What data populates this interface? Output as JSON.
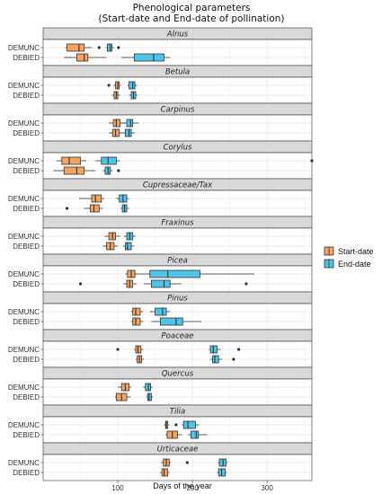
{
  "chart_data": {
    "type": "boxplot",
    "title": [
      "Phenological parameters",
      "(Start-date and End-date of pollination)"
    ],
    "xlabel": "Days of the year",
    "xlim": [
      0,
      360
    ],
    "xticks": [
      100,
      200,
      300
    ],
    "stations": [
      "DEMUNC",
      "DEBIED"
    ],
    "legend": {
      "position": "right",
      "entries": [
        {
          "name": "Start-date",
          "color": "#F4A460"
        },
        {
          "name": "End-date",
          "color": "#4FC3E8"
        }
      ]
    },
    "colors": {
      "start": "#F4A460",
      "end": "#4FC3E8",
      "strip": "#D9D9D9",
      "grid": "#EBEBEB"
    },
    "panels": [
      {
        "taxon": "Alnus",
        "rows": [
          {
            "station": "DEMUNC",
            "start": {
              "whislo": 30,
              "q1": 32,
              "med": 48,
              "q3": 55,
              "whishi": 65,
              "out": [
                75
              ]
            },
            "end": {
              "whislo": 84,
              "q1": 86,
              "med": 90,
              "q3": 92,
              "whishi": 95,
              "out": [
                101
              ]
            }
          },
          {
            "station": "DEBIED",
            "start": {
              "whislo": 28,
              "q1": 45,
              "med": 55,
              "q3": 60,
              "whishi": 85,
              "out": []
            },
            "end": {
              "whislo": 105,
              "q1": 122,
              "med": 148,
              "q3": 162,
              "whishi": 170,
              "out": []
            }
          }
        ]
      },
      {
        "taxon": "Betula",
        "rows": [
          {
            "station": "DEMUNC",
            "start": {
              "whislo": 94,
              "q1": 97,
              "med": 100,
              "q3": 102,
              "whishi": 104,
              "out": [
                88
              ]
            },
            "end": {
              "whislo": 113,
              "q1": 115,
              "med": 120,
              "q3": 123,
              "whishi": 126,
              "out": []
            }
          },
          {
            "station": "DEBIED",
            "start": {
              "whislo": 92,
              "q1": 95,
              "med": 98,
              "q3": 100,
              "whishi": 103,
              "out": []
            },
            "end": {
              "whislo": 115,
              "q1": 118,
              "med": 121,
              "q3": 124,
              "whishi": 126,
              "out": []
            }
          }
        ]
      },
      {
        "taxon": "Carpinus",
        "rows": [
          {
            "station": "DEMUNC",
            "start": {
              "whislo": 88,
              "q1": 94,
              "med": 98,
              "q3": 103,
              "whishi": 110,
              "out": []
            },
            "end": {
              "whislo": 105,
              "q1": 112,
              "med": 117,
              "q3": 120,
              "whishi": 128,
              "out": []
            }
          },
          {
            "station": "DEBIED",
            "start": {
              "whislo": 88,
              "q1": 93,
              "med": 97,
              "q3": 102,
              "whishi": 108,
              "out": []
            },
            "end": {
              "whislo": 105,
              "q1": 110,
              "med": 115,
              "q3": 118,
              "whishi": 123,
              "out": []
            }
          }
        ]
      },
      {
        "taxon": "Corylus",
        "rows": [
          {
            "station": "DEMUNC",
            "start": {
              "whislo": 18,
              "q1": 25,
              "med": 35,
              "q3": 50,
              "whishi": 58,
              "out": []
            },
            "end": {
              "whislo": 70,
              "q1": 78,
              "med": 87,
              "q3": 98,
              "whishi": 103,
              "out": [
                360
              ]
            }
          },
          {
            "station": "DEBIED",
            "start": {
              "whislo": 14,
              "q1": 28,
              "med": 45,
              "q3": 55,
              "whishi": 70,
              "out": []
            },
            "end": {
              "whislo": 80,
              "q1": 83,
              "med": 87,
              "q3": 90,
              "whishi": 93,
              "out": [
                101
              ]
            }
          }
        ]
      },
      {
        "taxon": "Cupressaceae/Tax",
        "rows": [
          {
            "station": "DEMUNC",
            "start": {
              "whislo": 48,
              "q1": 65,
              "med": 70,
              "q3": 78,
              "whishi": 82,
              "out": []
            },
            "end": {
              "whislo": 98,
              "q1": 102,
              "med": 107,
              "q3": 112,
              "whishi": 115,
              "out": []
            }
          },
          {
            "station": "DEBIED",
            "start": {
              "whislo": 55,
              "q1": 63,
              "med": 68,
              "q3": 75,
              "whishi": 80,
              "out": [
                32
              ]
            },
            "end": {
              "whislo": 104,
              "q1": 106,
              "med": 109,
              "q3": 112,
              "whishi": 115,
              "out": []
            }
          }
        ]
      },
      {
        "taxon": "Fraxinus",
        "rows": [
          {
            "station": "DEMUNC",
            "start": {
              "whislo": 82,
              "q1": 88,
              "med": 93,
              "q3": 97,
              "whishi": 103,
              "out": []
            },
            "end": {
              "whislo": 108,
              "q1": 112,
              "med": 116,
              "q3": 120,
              "whishi": 124,
              "out": []
            }
          },
          {
            "station": "DEBIED",
            "start": {
              "whislo": 80,
              "q1": 85,
              "med": 90,
              "q3": 95,
              "whishi": 100,
              "out": []
            },
            "end": {
              "whislo": 107,
              "q1": 110,
              "med": 113,
              "q3": 118,
              "whishi": 122,
              "out": []
            }
          }
        ]
      },
      {
        "taxon": "Picea",
        "rows": [
          {
            "station": "DEMUNC",
            "start": {
              "whislo": 110,
              "q1": 113,
              "med": 118,
              "q3": 123,
              "whishi": 128,
              "out": []
            },
            "end": {
              "whislo": 128,
              "q1": 143,
              "med": 167,
              "q3": 210,
              "whishi": 283,
              "out": []
            }
          },
          {
            "station": "DEBIED",
            "start": {
              "whislo": 108,
              "q1": 112,
              "med": 116,
              "q3": 120,
              "whishi": 125,
              "out": [
                50
              ]
            },
            "end": {
              "whislo": 135,
              "q1": 145,
              "med": 162,
              "q3": 170,
              "whishi": 185,
              "out": [
                272
              ]
            }
          }
        ]
      },
      {
        "taxon": "Pinus",
        "rows": [
          {
            "station": "DEMUNC",
            "start": {
              "whislo": 118,
              "q1": 120,
              "med": 124,
              "q3": 130,
              "whishi": 134,
              "out": []
            },
            "end": {
              "whislo": 143,
              "q1": 150,
              "med": 160,
              "q3": 165,
              "whishi": 170,
              "out": []
            }
          },
          {
            "station": "DEBIED",
            "start": {
              "whislo": 118,
              "q1": 120,
              "med": 124,
              "q3": 130,
              "whishi": 134,
              "out": []
            },
            "end": {
              "whislo": 145,
              "q1": 157,
              "med": 178,
              "q3": 187,
              "whishi": 212,
              "out": []
            }
          }
        ]
      },
      {
        "taxon": "Poaceae",
        "rows": [
          {
            "station": "DEMUNC",
            "start": {
              "whislo": 122,
              "q1": 124,
              "med": 127,
              "q3": 131,
              "whishi": 134,
              "out": [
                100
              ]
            },
            "end": {
              "whislo": 222,
              "q1": 224,
              "med": 228,
              "q3": 233,
              "whishi": 238,
              "out": [
                262
              ]
            }
          },
          {
            "station": "DEBIED",
            "start": {
              "whislo": 124,
              "q1": 126,
              "med": 129,
              "q3": 132,
              "whishi": 135,
              "out": []
            },
            "end": {
              "whislo": 224,
              "q1": 227,
              "med": 230,
              "q3": 235,
              "whishi": 240,
              "out": [
                255
              ]
            }
          }
        ]
      },
      {
        "taxon": "Quercus",
        "rows": [
          {
            "station": "DEMUNC",
            "start": {
              "whislo": 100,
              "q1": 105,
              "med": 110,
              "q3": 115,
              "whishi": 118,
              "out": []
            },
            "end": {
              "whislo": 134,
              "q1": 137,
              "med": 141,
              "q3": 144,
              "whishi": 147,
              "out": []
            }
          },
          {
            "station": "DEBIED",
            "start": {
              "whislo": 96,
              "q1": 98,
              "med": 105,
              "q3": 112,
              "whishi": 117,
              "out": []
            },
            "end": {
              "whislo": 138,
              "q1": 140,
              "med": 142,
              "q3": 145,
              "whishi": 147,
              "out": []
            }
          }
        ]
      },
      {
        "taxon": "Tilia",
        "rows": [
          {
            "station": "DEMUNC",
            "start": {
              "whislo": 162,
              "q1": 164,
              "med": 165,
              "q3": 167,
              "whishi": 169,
              "out": [
                178
              ]
            },
            "end": {
              "whislo": 186,
              "q1": 188,
              "med": 194,
              "q3": 204,
              "whishi": 209,
              "out": []
            }
          },
          {
            "station": "DEBIED",
            "start": {
              "whislo": 164,
              "q1": 166,
              "med": 173,
              "q3": 180,
              "whishi": 186,
              "out": []
            },
            "end": {
              "whislo": 194,
              "q1": 198,
              "med": 205,
              "q3": 208,
              "whishi": 220,
              "out": []
            }
          }
        ]
      },
      {
        "taxon": "Urticaceae",
        "rows": [
          {
            "station": "DEMUNC",
            "start": {
              "whislo": 158,
              "q1": 161,
              "med": 165,
              "q3": 169,
              "whishi": 171,
              "out": [
                193
              ]
            },
            "end": {
              "whislo": 234,
              "q1": 236,
              "med": 241,
              "q3": 245,
              "whishi": 247,
              "out": []
            }
          },
          {
            "station": "DEBIED",
            "start": {
              "whislo": 157,
              "q1": 159,
              "med": 162,
              "q3": 167,
              "whishi": 169,
              "out": []
            },
            "end": {
              "whislo": 233,
              "q1": 235,
              "med": 239,
              "q3": 244,
              "whishi": 246,
              "out": []
            }
          }
        ]
      }
    ]
  }
}
